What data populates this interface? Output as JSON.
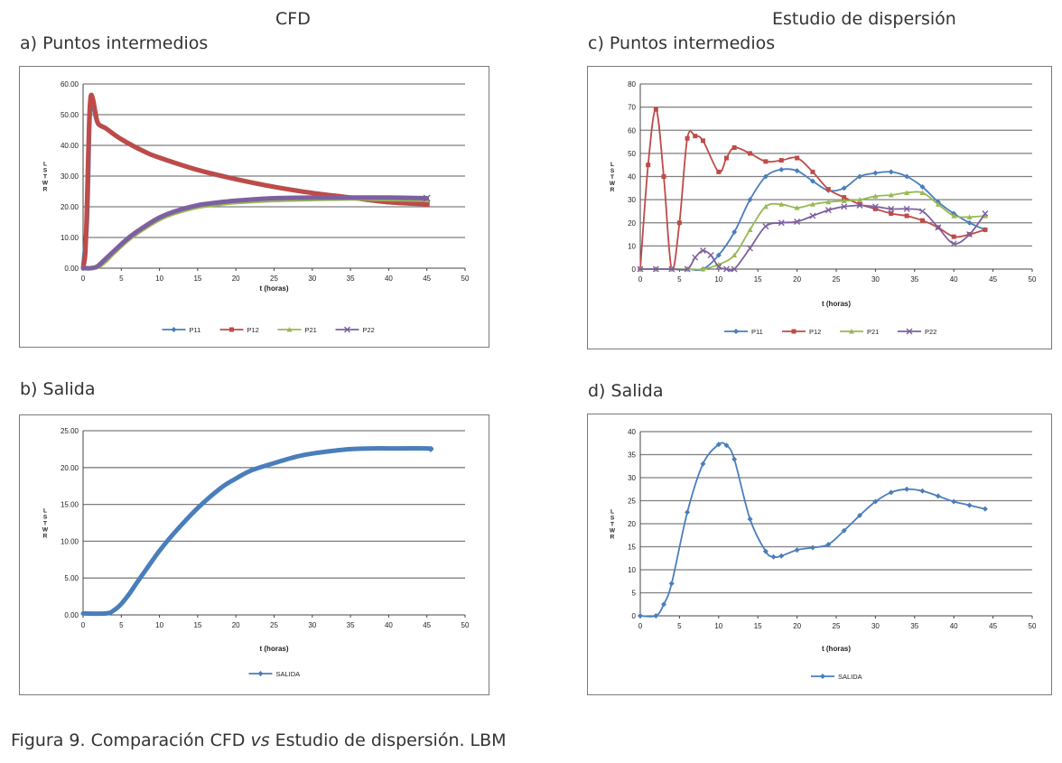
{
  "header": {
    "left_title": "CFD",
    "right_title": "Estudio de dispersión"
  },
  "caption": {
    "prefix": "Figura 9. Comparación CFD ",
    "italic": "vs",
    "suffix": " Estudio de dispersión. LBM"
  },
  "colors": {
    "P11": "#4a7ebb",
    "P12": "#be4b48",
    "P21": "#98b954",
    "P22": "#7d60a0",
    "SALIDA": "#4a7ebb",
    "grid": "#7f7f7f"
  },
  "chart_data": [
    {
      "id": "a",
      "type": "line",
      "panel_title": "a) Puntos intermedios",
      "xlabel": "t (horas)",
      "ylabel": "L/S/T/W/R",
      "xlim": [
        0,
        50
      ],
      "ylim": [
        0,
        60
      ],
      "x_ticks": [
        "0",
        "5",
        "10",
        "15",
        "20",
        "25",
        "30",
        "35",
        "40",
        "45",
        "50"
      ],
      "y_ticks": [
        "0.00",
        "10.00",
        "20.00",
        "30.00",
        "40.00",
        "50.00",
        "60.00"
      ],
      "legend": [
        "P11",
        "P12",
        "P21",
        "P22"
      ],
      "series": [
        {
          "name": "P11",
          "marker": "diamond",
          "points": [
            [
              0,
              0
            ],
            [
              0.5,
              15
            ],
            [
              0.8,
              45
            ],
            [
              1.0,
              55
            ],
            [
              1.3,
              54
            ],
            [
              1.6,
              50
            ],
            [
              2,
              47
            ],
            [
              3,
              45.5
            ],
            [
              5,
              42
            ],
            [
              8,
              38
            ],
            [
              10,
              36
            ],
            [
              15,
              32
            ],
            [
              20,
              29
            ],
            [
              25,
              26.5
            ],
            [
              30,
              24.5
            ],
            [
              35,
              23
            ],
            [
              40,
              21.5
            ],
            [
              45,
              21
            ]
          ]
        },
        {
          "name": "P12",
          "marker": "square",
          "points": [
            [
              0,
              0
            ],
            [
              0.3,
              5
            ],
            [
              0.5,
              20
            ],
            [
              0.8,
              48
            ],
            [
              1.0,
              56
            ],
            [
              1.3,
              55
            ],
            [
              1.6,
              51
            ],
            [
              2,
              47
            ],
            [
              3,
              45.5
            ],
            [
              5,
              42
            ],
            [
              8,
              38
            ],
            [
              10,
              36
            ],
            [
              15,
              32
            ],
            [
              20,
              29
            ],
            [
              25,
              26.5
            ],
            [
              30,
              24.5
            ],
            [
              35,
              23
            ],
            [
              40,
              21.5
            ],
            [
              45,
              20.8
            ]
          ]
        },
        {
          "name": "P21",
          "marker": "triangle",
          "points": [
            [
              0,
              0
            ],
            [
              1,
              0
            ],
            [
              2,
              0.5
            ],
            [
              3,
              2.5
            ],
            [
              4,
              5
            ],
            [
              6,
              9.5
            ],
            [
              8,
              13
            ],
            [
              10,
              16
            ],
            [
              12,
              18
            ],
            [
              15,
              20
            ],
            [
              18,
              21
            ],
            [
              20,
              21.5
            ],
            [
              25,
              22.2
            ],
            [
              30,
              22.5
            ],
            [
              35,
              22.7
            ],
            [
              40,
              22.5
            ],
            [
              45,
              22.3
            ]
          ]
        },
        {
          "name": "P22",
          "marker": "x",
          "points": [
            [
              0,
              0
            ],
            [
              1,
              0
            ],
            [
              1.8,
              0.5
            ],
            [
              2.5,
              2
            ],
            [
              4,
              5.5
            ],
            [
              6,
              10
            ],
            [
              8,
              13.5
            ],
            [
              10,
              16.5
            ],
            [
              12,
              18.5
            ],
            [
              15,
              20.5
            ],
            [
              18,
              21.5
            ],
            [
              20,
              22
            ],
            [
              25,
              22.8
            ],
            [
              30,
              23
            ],
            [
              35,
              23
            ],
            [
              40,
              23
            ],
            [
              45,
              22.8
            ]
          ]
        }
      ]
    },
    {
      "id": "b",
      "type": "line",
      "panel_title": "b) Salida",
      "xlabel": "t (horas)",
      "ylabel": "L/S/T/W/R",
      "xlim": [
        0,
        50
      ],
      "ylim": [
        0,
        25
      ],
      "x_ticks": [
        "0",
        "5",
        "10",
        "15",
        "20",
        "25",
        "30",
        "35",
        "40",
        "45",
        "50"
      ],
      "y_ticks": [
        "0.00",
        "5.00",
        "10.00",
        "15.00",
        "20.00",
        "25.00"
      ],
      "legend": [
        "SALIDA"
      ],
      "series": [
        {
          "name": "SALIDA",
          "marker": "diamond",
          "points": [
            [
              0,
              0.2
            ],
            [
              3,
              0.2
            ],
            [
              4,
              0.6
            ],
            [
              5,
              1.5
            ],
            [
              6,
              2.8
            ],
            [
              7,
              4.3
            ],
            [
              8,
              5.8
            ],
            [
              10,
              8.7
            ],
            [
              12,
              11.2
            ],
            [
              15,
              14.5
            ],
            [
              18,
              17.2
            ],
            [
              20,
              18.5
            ],
            [
              22,
              19.6
            ],
            [
              25,
              20.6
            ],
            [
              28,
              21.5
            ],
            [
              30,
              21.9
            ],
            [
              33,
              22.3
            ],
            [
              35,
              22.5
            ],
            [
              38,
              22.6
            ],
            [
              40,
              22.6
            ],
            [
              45,
              22.6
            ],
            [
              45.5,
              22.5
            ]
          ]
        }
      ]
    },
    {
      "id": "c",
      "type": "line",
      "panel_title": "c) Puntos intermedios",
      "xlabel": "t (horas)",
      "ylabel": "L/S/T/W/R",
      "xlim": [
        0,
        50
      ],
      "ylim": [
        0,
        80
      ],
      "x_ticks": [
        "0",
        "5",
        "10",
        "15",
        "20",
        "25",
        "30",
        "35",
        "40",
        "45",
        "50"
      ],
      "y_ticks": [
        "0",
        "10",
        "20",
        "30",
        "40",
        "50",
        "60",
        "70",
        "80"
      ],
      "legend": [
        "P11",
        "P12",
        "P21",
        "P22"
      ],
      "series": [
        {
          "name": "P11",
          "marker": "diamond",
          "points": [
            [
              0,
              0
            ],
            [
              2,
              0
            ],
            [
              4,
              0
            ],
            [
              6,
              0
            ],
            [
              8,
              0
            ],
            [
              10,
              6
            ],
            [
              12,
              16
            ],
            [
              14,
              30
            ],
            [
              16,
              40
            ],
            [
              18,
              43
            ],
            [
              20,
              42.5
            ],
            [
              22,
              38
            ],
            [
              24,
              34
            ],
            [
              26,
              35
            ],
            [
              28,
              40
            ],
            [
              30,
              41.5
            ],
            [
              32,
              42
            ],
            [
              34,
              40
            ],
            [
              36,
              35.5
            ],
            [
              38,
              29
            ],
            [
              40,
              24
            ],
            [
              42,
              20
            ],
            [
              44,
              17
            ]
          ]
        },
        {
          "name": "P12",
          "marker": "square",
          "points": [
            [
              0,
              0
            ],
            [
              1,
              45
            ],
            [
              2,
              69
            ],
            [
              3,
              40
            ],
            [
              4,
              0
            ],
            [
              5,
              20
            ],
            [
              6,
              56.5
            ],
            [
              7,
              57.5
            ],
            [
              8,
              55.5
            ],
            [
              10,
              42
            ],
            [
              11,
              48
            ],
            [
              12,
              52.5
            ],
            [
              14,
              50
            ],
            [
              16,
              46.5
            ],
            [
              18,
              47
            ],
            [
              20,
              48
            ],
            [
              22,
              42
            ],
            [
              24,
              34.5
            ],
            [
              26,
              31
            ],
            [
              28,
              28
            ],
            [
              30,
              26
            ],
            [
              32,
              24
            ],
            [
              34,
              23
            ],
            [
              36,
              21
            ],
            [
              38,
              18
            ],
            [
              40,
              14
            ],
            [
              42,
              15
            ],
            [
              44,
              17
            ]
          ]
        },
        {
          "name": "P21",
          "marker": "triangle",
          "points": [
            [
              0,
              0
            ],
            [
              2,
              0
            ],
            [
              4,
              0
            ],
            [
              6,
              0
            ],
            [
              8,
              0
            ],
            [
              10,
              2
            ],
            [
              12,
              6
            ],
            [
              14,
              17
            ],
            [
              16,
              27
            ],
            [
              18,
              28
            ],
            [
              20,
              26.5
            ],
            [
              22,
              28
            ],
            [
              24,
              29
            ],
            [
              26,
              29.5
            ],
            [
              28,
              30
            ],
            [
              30,
              31.5
            ],
            [
              32,
              32
            ],
            [
              34,
              33
            ],
            [
              36,
              33
            ],
            [
              38,
              28
            ],
            [
              40,
              23
            ],
            [
              42,
              22.5
            ],
            [
              44,
              23
            ]
          ]
        },
        {
          "name": "P22",
          "marker": "x",
          "points": [
            [
              0,
              0
            ],
            [
              2,
              0
            ],
            [
              4,
              0
            ],
            [
              6,
              0
            ],
            [
              7,
              5
            ],
            [
              8,
              8
            ],
            [
              9,
              6
            ],
            [
              10,
              1
            ],
            [
              11,
              0
            ],
            [
              12,
              0
            ],
            [
              14,
              9
            ],
            [
              16,
              18.5
            ],
            [
              18,
              20
            ],
            [
              20,
              20.5
            ],
            [
              22,
              23
            ],
            [
              24,
              25.5
            ],
            [
              26,
              27
            ],
            [
              28,
              27.5
            ],
            [
              30,
              27
            ],
            [
              32,
              26
            ],
            [
              34,
              26
            ],
            [
              36,
              25
            ],
            [
              38,
              18
            ],
            [
              40,
              11
            ],
            [
              42,
              15
            ],
            [
              44,
              24
            ]
          ]
        }
      ]
    },
    {
      "id": "d",
      "type": "line",
      "panel_title": "d) Salida",
      "xlabel": "t (horas)",
      "ylabel": "L/S/T/W/R",
      "xlim": [
        0,
        50
      ],
      "ylim": [
        0,
        40
      ],
      "x_ticks": [
        "0",
        "5",
        "10",
        "15",
        "20",
        "25",
        "30",
        "35",
        "40",
        "45",
        "50"
      ],
      "y_ticks": [
        "0",
        "5",
        "10",
        "15",
        "20",
        "25",
        "30",
        "35",
        "40"
      ],
      "legend": [
        "SALIDA"
      ],
      "series": [
        {
          "name": "SALIDA",
          "marker": "diamond",
          "points": [
            [
              0,
              0
            ],
            [
              2,
              0
            ],
            [
              3,
              2.5
            ],
            [
              4,
              7
            ],
            [
              6,
              22.5
            ],
            [
              8,
              33
            ],
            [
              10,
              37.2
            ],
            [
              11,
              37
            ],
            [
              12,
              34
            ],
            [
              14,
              21
            ],
            [
              16,
              14
            ],
            [
              17,
              12.8
            ],
            [
              18,
              13
            ],
            [
              20,
              14.3
            ],
            [
              22,
              14.8
            ],
            [
              24,
              15.5
            ],
            [
              26,
              18.5
            ],
            [
              28,
              21.8
            ],
            [
              30,
              24.8
            ],
            [
              32,
              26.8
            ],
            [
              34,
              27.5
            ],
            [
              36,
              27.1
            ],
            [
              38,
              26
            ],
            [
              40,
              24.8
            ],
            [
              42,
              24
            ],
            [
              44,
              23.2
            ]
          ]
        }
      ]
    }
  ]
}
